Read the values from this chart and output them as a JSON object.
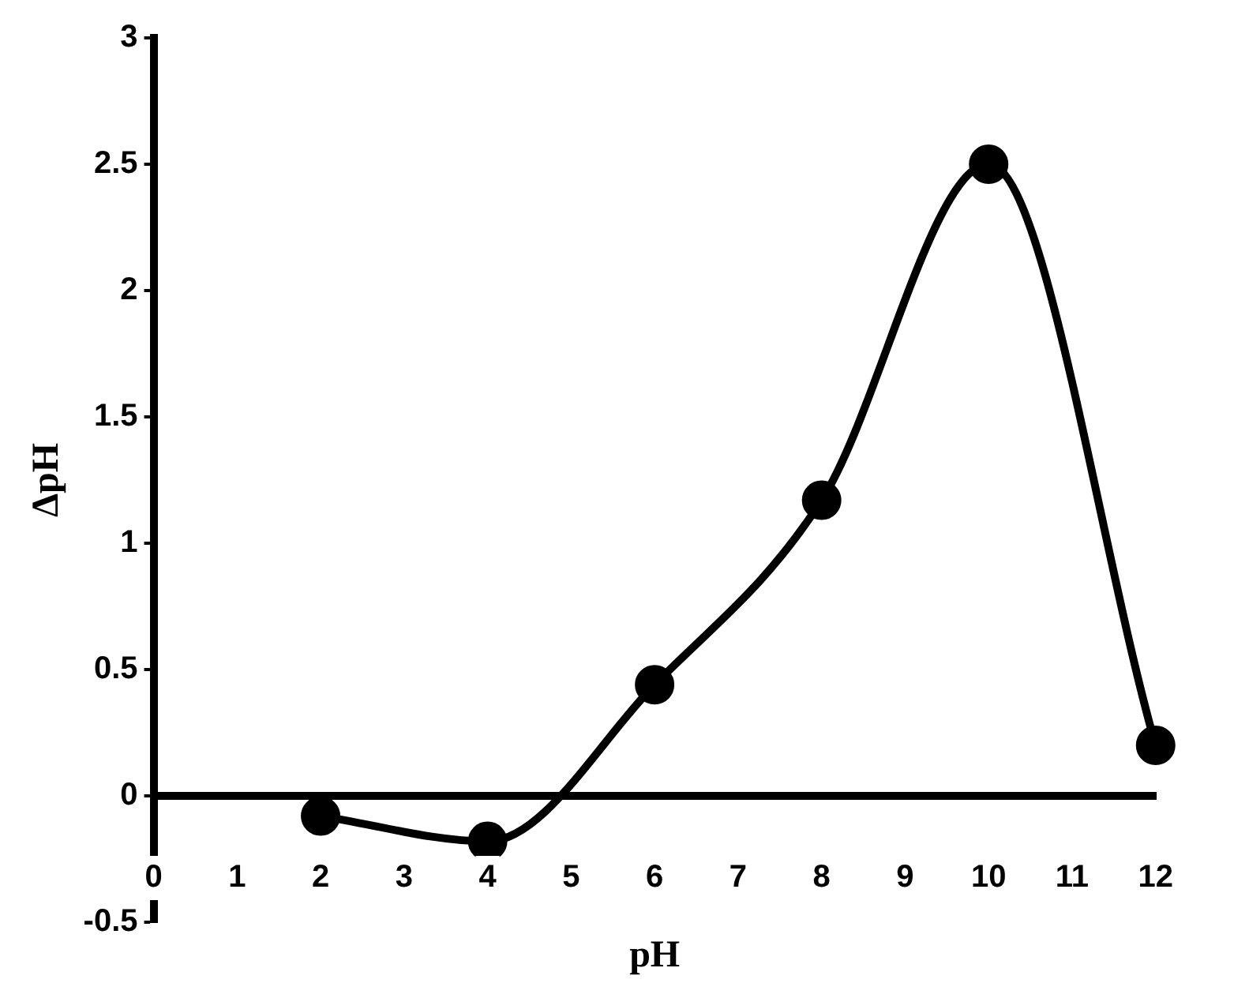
{
  "chart_data": {
    "type": "line",
    "xlabel": "pH",
    "ylabel": "ΔpH",
    "x": [
      2,
      4,
      6,
      8,
      10,
      12
    ],
    "series": [
      {
        "color": "#000000",
        "values": [
          -0.08,
          -0.18,
          0.44,
          1.17,
          2.5,
          0.2
        ]
      }
    ],
    "xlim": [
      0,
      12
    ],
    "xticks": [
      0,
      1,
      2,
      3,
      4,
      5,
      6,
      7,
      8,
      9,
      10,
      11,
      12
    ],
    "ylim": [
      -0.5,
      3
    ],
    "yticks": [
      -0.5,
      0,
      0.5,
      1,
      1.5,
      2,
      2.5,
      3
    ],
    "grid": false,
    "legend": false,
    "marker": "circle",
    "line_style": "solid"
  }
}
